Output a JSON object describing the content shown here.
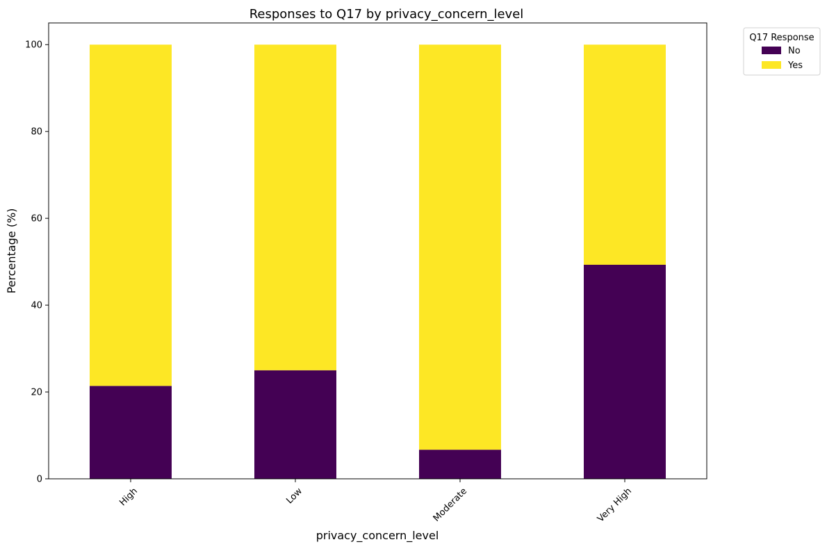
{
  "chart_data": {
    "type": "bar",
    "stacked": true,
    "title": "Responses to Q17 by privacy_concern_level",
    "xlabel": "privacy_concern_level",
    "ylabel": "Percentage (%)",
    "categories": [
      "High",
      "Low",
      "Moderate",
      "Very High"
    ],
    "series": [
      {
        "name": "No",
        "values": [
          21.4,
          25.0,
          6.7,
          49.3
        ],
        "color": "#440154"
      },
      {
        "name": "Yes",
        "values": [
          78.6,
          75.0,
          93.3,
          50.7
        ],
        "color": "#fde725"
      }
    ],
    "ylim": [
      0,
      105
    ],
    "yticks": [
      0,
      20,
      40,
      60,
      80,
      100
    ],
    "grid": false,
    "legend": {
      "title": "Q17 Response",
      "placement": "outside top-right"
    }
  }
}
